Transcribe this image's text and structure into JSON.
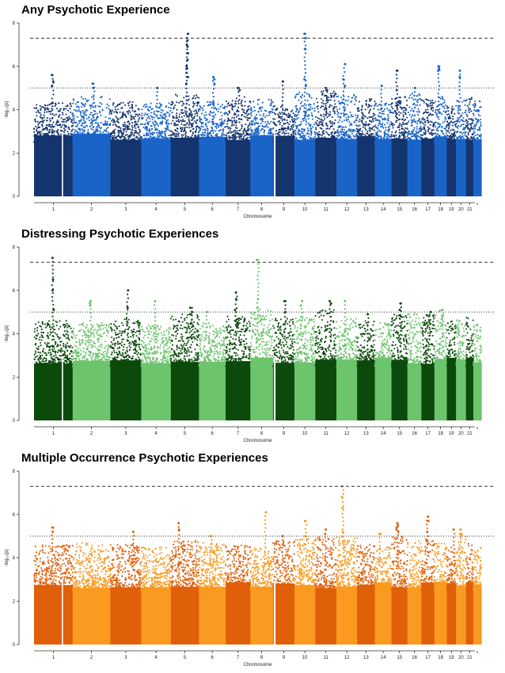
{
  "chart_data": [
    {
      "type": "scatter",
      "subtype": "manhattan",
      "title": "Any Psychotic Experience",
      "xlabel": "Chromosome",
      "ylabel": "-log₁₀(p)",
      "ylim": [
        0,
        8
      ],
      "yticks": [
        "0",
        "2",
        "4",
        "6",
        "8"
      ],
      "thresholds": [
        7.3,
        5
      ],
      "colors": [
        "#15356e",
        "#1a64c8"
      ],
      "chromosomes": [
        "1",
        "2",
        "3",
        "4",
        "5",
        "6",
        "7",
        "8",
        "9",
        "10",
        "11",
        "12",
        "13",
        "14",
        "15",
        "16",
        "17",
        "18",
        "19",
        "20",
        "21",
        "22"
      ],
      "labels": [
        "1",
        "2",
        "3",
        "4",
        "5",
        "6",
        "7",
        "8",
        "9",
        "10",
        "11",
        "12",
        "13",
        "14",
        "15",
        "16",
        "17",
        "18",
        "19",
        "20",
        "21",
        ""
      ],
      "bulk_height": [
        4.0,
        4.3,
        4.1,
        4.0,
        4.4,
        4.1,
        4.3,
        4.2,
        3.9,
        4.5,
        4.6,
        4.4,
        4.2,
        4.0,
        4.3,
        4.5,
        4.2,
        4.3,
        4.0,
        4.2,
        4.4,
        4.1
      ],
      "peaks": [
        {
          "chr": "1",
          "values": [
            5.6,
            5.3,
            5.1
          ]
        },
        {
          "chr": "2",
          "values": [
            5.2,
            5.0
          ]
        },
        {
          "chr": "4",
          "values": [
            5.0
          ]
        },
        {
          "chr": "5",
          "values": [
            7.5,
            7.2,
            7.0,
            6.9,
            6.6,
            6.3,
            6.0,
            5.9,
            5.7,
            5.5,
            5.2
          ]
        },
        {
          "chr": "6",
          "values": [
            5.5,
            5.4,
            5.2
          ]
        },
        {
          "chr": "7",
          "values": [
            5.0,
            4.9
          ]
        },
        {
          "chr": "9",
          "values": [
            5.3
          ]
        },
        {
          "chr": "10",
          "values": [
            7.5,
            7.3,
            6.8,
            5.4,
            5.1
          ]
        },
        {
          "chr": "11",
          "values": [
            5.0,
            4.9
          ]
        },
        {
          "chr": "12",
          "values": [
            6.1,
            5.4,
            5.1
          ]
        },
        {
          "chr": "14",
          "values": [
            5.1
          ]
        },
        {
          "chr": "15",
          "values": [
            5.8,
            4.9
          ]
        },
        {
          "chr": "16",
          "values": [
            5.0
          ]
        },
        {
          "chr": "18",
          "values": [
            6.0,
            5.9,
            5.8
          ]
        },
        {
          "chr": "20",
          "values": [
            5.8,
            5.5
          ]
        }
      ]
    },
    {
      "type": "scatter",
      "subtype": "manhattan",
      "title": "Distressing Psychotic Experiences",
      "xlabel": "Chromosome",
      "ylabel": "-log₁₀(p)",
      "ylim": [
        0,
        8
      ],
      "yticks": [
        "0",
        "2",
        "4",
        "6",
        "8"
      ],
      "thresholds": [
        7.3,
        5
      ],
      "colors": [
        "#0c4a0c",
        "#6cc46c"
      ],
      "chromosomes": [
        "1",
        "2",
        "3",
        "4",
        "5",
        "6",
        "7",
        "8",
        "9",
        "10",
        "11",
        "12",
        "13",
        "14",
        "15",
        "16",
        "17",
        "18",
        "19",
        "20",
        "21",
        "22"
      ],
      "labels": [
        "1",
        "2",
        "3",
        "4",
        "5",
        "6",
        "7",
        "8",
        "9",
        "10",
        "11",
        "12",
        "13",
        "14",
        "15",
        "16",
        "17",
        "18",
        "19",
        "20",
        "21",
        ""
      ],
      "bulk_height": [
        4.3,
        4.2,
        4.4,
        4.1,
        4.6,
        4.2,
        4.5,
        4.9,
        4.4,
        4.5,
        4.8,
        4.4,
        4.3,
        4.2,
        4.6,
        4.7,
        4.6,
        4.8,
        4.3,
        4.4,
        4.5,
        4.2
      ],
      "peaks": [
        {
          "chr": "1",
          "values": [
            7.5,
            6.5,
            6.0,
            5.1
          ]
        },
        {
          "chr": "2",
          "values": [
            5.5,
            5.4,
            5.3
          ]
        },
        {
          "chr": "3",
          "values": [
            6.0,
            5.2
          ]
        },
        {
          "chr": "4",
          "values": [
            5.5
          ]
        },
        {
          "chr": "5",
          "values": [
            5.2,
            5.0,
            4.9
          ]
        },
        {
          "chr": "6",
          "values": [
            5.0
          ]
        },
        {
          "chr": "7",
          "values": [
            5.9,
            5.6,
            5.1
          ]
        },
        {
          "chr": "8",
          "values": [
            7.4,
            5.6,
            5.2
          ]
        },
        {
          "chr": "9",
          "values": [
            5.5,
            5.0
          ]
        },
        {
          "chr": "10",
          "values": [
            5.5,
            5.3
          ]
        },
        {
          "chr": "11",
          "values": [
            5.5,
            5.4
          ]
        },
        {
          "chr": "12",
          "values": [
            5.5
          ]
        },
        {
          "chr": "13",
          "values": [
            4.9
          ]
        },
        {
          "chr": "15",
          "values": [
            5.4,
            5.1
          ]
        },
        {
          "chr": "17",
          "values": [
            5.0
          ]
        },
        {
          "chr": "18",
          "values": [
            5.1
          ]
        }
      ]
    },
    {
      "type": "scatter",
      "subtype": "manhattan",
      "title": "Multiple Occurrence Psychotic Experiences",
      "xlabel": "Chromosome",
      "ylabel": "-log₁₀(p)",
      "ylim": [
        0,
        8
      ],
      "yticks": [
        "0",
        "2",
        "4",
        "6",
        "8"
      ],
      "thresholds": [
        7.3,
        5
      ],
      "colors": [
        "#e0600a",
        "#fb9a20"
      ],
      "chromosomes": [
        "1",
        "2",
        "3",
        "4",
        "5",
        "6",
        "7",
        "8",
        "9",
        "10",
        "11",
        "12",
        "13",
        "14",
        "15",
        "16",
        "17",
        "18",
        "19",
        "20",
        "21",
        "22"
      ],
      "labels": [
        "1",
        "2",
        "3",
        "4",
        "5",
        "6",
        "7",
        "8",
        "9",
        "10",
        "11",
        "12",
        "13",
        "14",
        "15",
        "16",
        "17",
        "18",
        "19",
        "20",
        "21",
        ""
      ],
      "bulk_height": [
        4.3,
        4.4,
        4.3,
        4.2,
        4.5,
        4.4,
        4.3,
        4.2,
        4.5,
        4.6,
        4.7,
        4.8,
        4.3,
        4.2,
        4.7,
        4.5,
        4.6,
        4.4,
        4.3,
        4.8,
        4.4,
        4.2
      ],
      "peaks": [
        {
          "chr": "1",
          "values": [
            5.4,
            5.2
          ]
        },
        {
          "chr": "3",
          "values": [
            5.2
          ]
        },
        {
          "chr": "5",
          "values": [
            5.6,
            5.3
          ]
        },
        {
          "chr": "6",
          "values": [
            5.0
          ]
        },
        {
          "chr": "8",
          "values": [
            6.1
          ]
        },
        {
          "chr": "9",
          "values": [
            5.0
          ]
        },
        {
          "chr": "10",
          "values": [
            5.7,
            5.0
          ]
        },
        {
          "chr": "11",
          "values": [
            5.3,
            5.1
          ]
        },
        {
          "chr": "12",
          "values": [
            7.3,
            6.8,
            6.3,
            5.2
          ]
        },
        {
          "chr": "14",
          "values": [
            5.1
          ]
        },
        {
          "chr": "15",
          "values": [
            5.6,
            5.5,
            5.4,
            5.3,
            5.2
          ]
        },
        {
          "chr": "17",
          "values": [
            5.9,
            5.7,
            5.2
          ]
        },
        {
          "chr": "19",
          "values": [
            5.3
          ]
        },
        {
          "chr": "20",
          "values": [
            5.3,
            5.1
          ]
        }
      ]
    }
  ]
}
